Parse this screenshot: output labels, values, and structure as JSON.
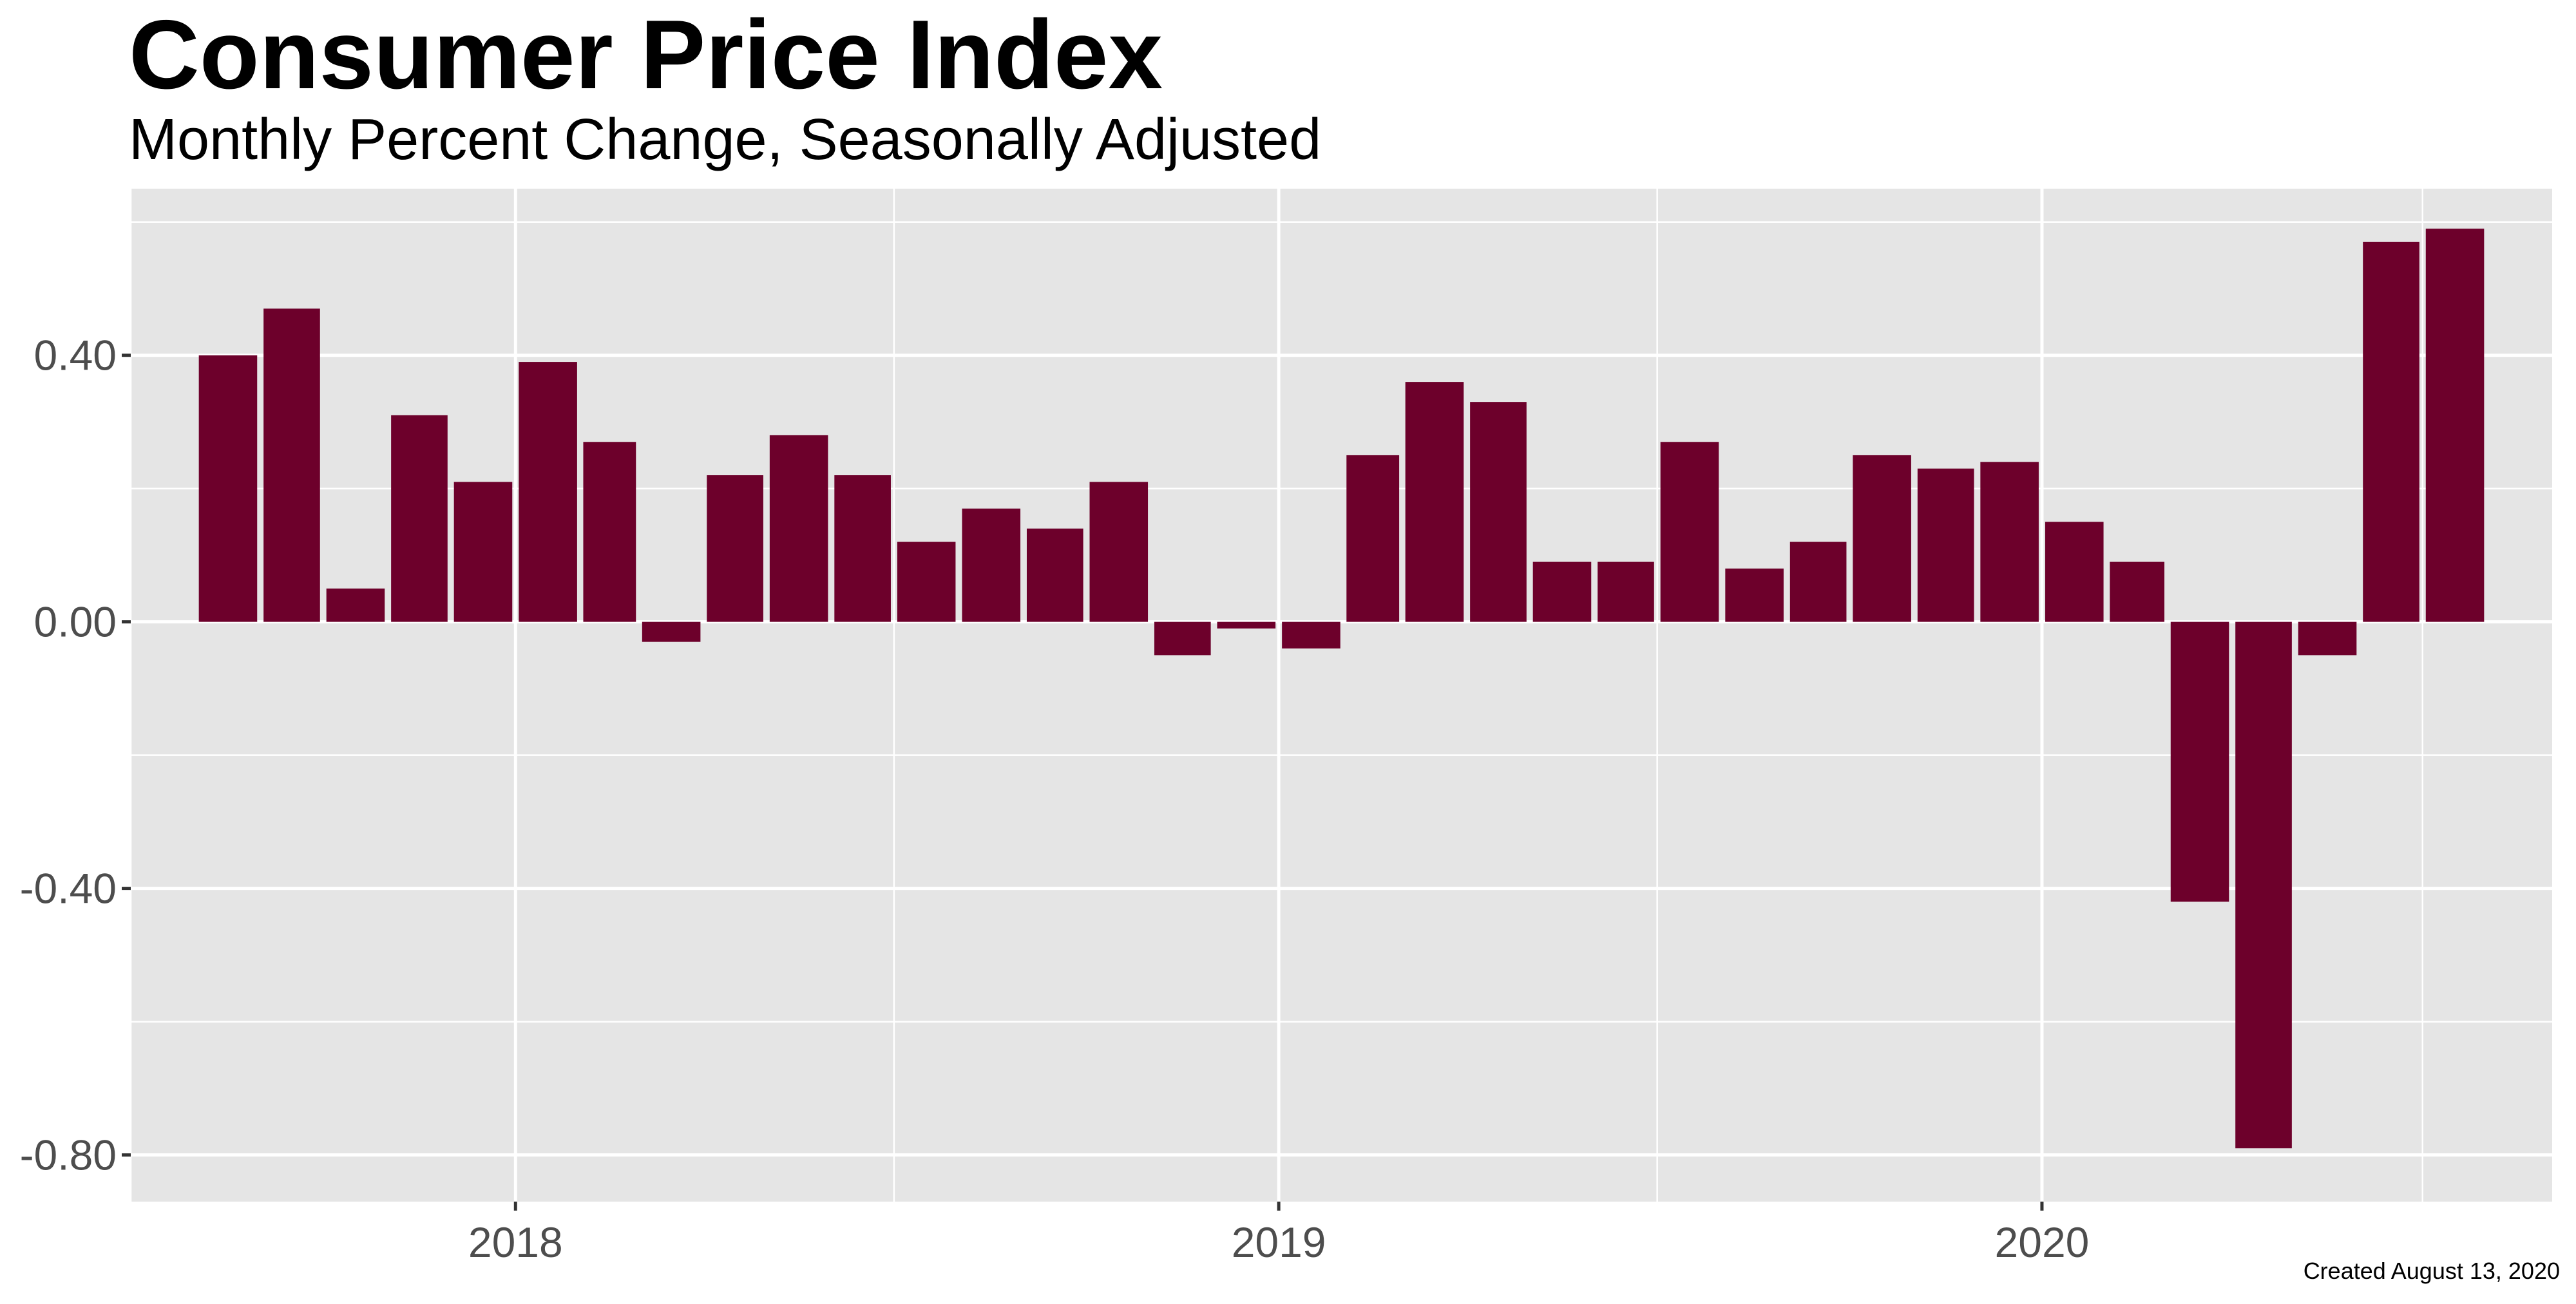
{
  "chart_data": {
    "type": "bar",
    "title": "Consumer Price Index",
    "subtitle": "Monthly Percent Change, Seasonally Adjusted",
    "caption": "Created August 13, 2020",
    "xlabel": "",
    "ylabel": "",
    "categories": [
      "2017-08",
      "2017-09",
      "2017-10",
      "2017-11",
      "2017-12",
      "2018-01",
      "2018-02",
      "2018-03",
      "2018-04",
      "2018-05",
      "2018-06",
      "2018-07",
      "2018-08",
      "2018-09",
      "2018-10",
      "2018-11",
      "2018-12",
      "2019-01",
      "2019-02",
      "2019-03",
      "2019-04",
      "2019-05",
      "2019-06",
      "2019-07",
      "2019-08",
      "2019-09",
      "2019-10",
      "2019-11",
      "2019-12",
      "2020-01",
      "2020-02",
      "2020-03",
      "2020-04",
      "2020-05",
      "2020-06",
      "2020-07"
    ],
    "values": [
      0.4,
      0.47,
      0.05,
      0.31,
      0.21,
      0.39,
      0.27,
      -0.03,
      0.22,
      0.28,
      0.22,
      0.12,
      0.17,
      0.14,
      0.21,
      -0.05,
      -0.01,
      -0.04,
      0.25,
      0.36,
      0.33,
      0.09,
      0.09,
      0.27,
      0.08,
      0.12,
      0.25,
      0.23,
      0.24,
      0.15,
      0.09,
      -0.42,
      -0.79,
      -0.05,
      0.57,
      0.59
    ],
    "x_tick_labels": [
      {
        "label": "2018",
        "date": "2018-01-01"
      },
      {
        "label": "2019",
        "date": "2019-01-01"
      },
      {
        "label": "2020",
        "date": "2020-01-01"
      }
    ],
    "x_minor_breaks": [
      "2018-07-01",
      "2019-07-01",
      "2020-07-01"
    ],
    "xlim": [
      "2017-07-01",
      "2020-09-01"
    ],
    "y_ticks": [
      0.4,
      0.0,
      -0.4,
      -0.8
    ],
    "y_tick_labels": [
      "0.40",
      "0.00",
      "-0.40",
      "-0.80"
    ],
    "ylim": [
      -0.87,
      0.65
    ],
    "grid": true,
    "legend": "none",
    "colors": {
      "bar": "#6d002b",
      "panel": "#e5e5e5",
      "grid": "#ffffff",
      "tick_label": "#4d4d4d",
      "tick_mark": "#333333"
    }
  }
}
